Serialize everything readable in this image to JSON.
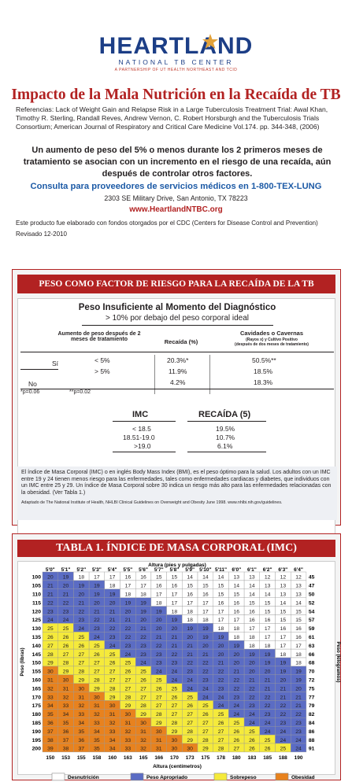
{
  "logo": {
    "name": "HEARTLAND",
    "line1": "NATIONAL TB CENTER",
    "line2": "A PARTNERSHIP OF UT HEALTH NORTHEAST AND TCID"
  },
  "title": "Impacto de la Mala Nutrición en la Recaída de TB",
  "references": "Referencias: Lack of Weight Gain and Relapse Risk in a Large Tuberculosis Treatment Trial: Awal Khan, Timothy R. Sterling, Randall Reves, Andrew Vernon, C. Robert Horsburgh and the Tuberculosis Trials Consortium; American Journal of Respiratory and Critical Care Medicine Vol.174. pp. 344-348, (2006)",
  "lead": "Un aumento de peso del 5% o menos durante los 2 primeros meses de tratamiento se asocian con un incremento en el riesgo de una recaída, aún después de controlar otros factores.",
  "consult": "Consulta para proveedores de servicios médicos en 1-800-TEX-LUNG",
  "address": "2303 SE Military Drive, San Antonio, TX 78223",
  "website": "www.HeartlandNTBC.org",
  "funding": "Este producto fue elaborado con fondos otorgados por el CDC (Centers for Disease Control and Prevention)",
  "revised": "Revisado 12-2010",
  "section1": {
    "banner": "PESO COMO FACTOR DE RIESGO PARA LA RECAÍDA DE LA TB",
    "subtitle": "Peso Insuficiente al Momento del Diagnóstico",
    "sub2": "> 10% por debajo del peso corporal ideal",
    "col1": "Aumento de peso después de 2 meses de tratamiento",
    "col2": "Recaída (%)",
    "col3": "Cavidades o Cavernas",
    "col3b": "(Rayos x) y Cultivo Positivo",
    "col3c": "(después de dos meses de tratamiento)",
    "row_si": "Sí",
    "row_no": "No",
    "cond1": "< 5%",
    "cond2": "> 5%",
    "rec": [
      "20.3%*",
      "11.9%",
      "4.2%"
    ],
    "cav": [
      "50.5%**",
      "18.5%",
      "18.3%"
    ],
    "p1": "*p=0.06",
    "p2": "**p=0.02",
    "bmi_h": "IMC",
    "rel_h": "RECAÍDA (5)",
    "bmi": [
      "< 18.5",
      "18.51-19.0",
      ">19.0"
    ],
    "rel": [
      "19.5%",
      "10.7%",
      "6.1%"
    ],
    "foot": "El índice de Masa Corporal (IMC) o en inglés Body Mass Index (BMI), es el peso óptimo para la salud. Los adultos con un IMC entre 19 y 24 tienen menos riesgo para las enfermedades, tales como enfermedades cardiacas y diabetes, que individuos con un IMC entre 25 y 29. Un índice de Masa Corporal sobre 30 indica un riesgo más alto para las enfermedades relacionadas con la obesidad. (Ver Tabla 1.)",
    "foot_src": "Adaptado de The National Institute of Health, NHLBI Clinical Guidelines on Overweight and Obesity June 1998. www.nhlbi.nih.gov/guidelines."
  },
  "section2": {
    "banner": "TABLA 1. ÍNDICE DE MASA CORPORAL (IMC)",
    "top_label": "Altura (pies y pulgadas)",
    "bottom_label": "Altura (centímetros)",
    "left_label": "Peso (libras)",
    "right_label": "Peso (kilogramos)",
    "heights_ft": [
      "5'0\"",
      "5'1\"",
      "5'2\"",
      "5'3\"",
      "5'4\"",
      "5'5\"",
      "5'6\"",
      "5'7\"",
      "5'8\"",
      "5'9\"",
      "5'10\"",
      "5'11\"",
      "6'0\"",
      "6'1\"",
      "6'2\"",
      "6'3\"",
      "6'4\""
    ],
    "heights_cm": [
      "150",
      "153",
      "155",
      "158",
      "160",
      "163",
      "165",
      "166",
      "170",
      "173",
      "175",
      "178",
      "180",
      "183",
      "185",
      "188",
      "190"
    ],
    "weights_lb": [
      "100",
      "105",
      "110",
      "115",
      "120",
      "125",
      "130",
      "135",
      "140",
      "145",
      "150",
      "155",
      "160",
      "165",
      "170",
      "175",
      "180",
      "185",
      "190",
      "195",
      "200"
    ],
    "weights_kg": [
      "45",
      "47",
      "50",
      "52",
      "54",
      "57",
      "59",
      "61",
      "63",
      "66",
      "68",
      "70",
      "72",
      "75",
      "77",
      "79",
      "82",
      "84",
      "86",
      "88",
      "91"
    ],
    "bmi": [
      [
        20,
        19,
        18,
        17,
        17,
        16,
        16,
        15,
        15,
        14,
        14,
        14,
        13,
        13,
        12,
        12,
        12
      ],
      [
        21,
        20,
        19,
        19,
        18,
        17,
        17,
        16,
        16,
        15,
        15,
        15,
        14,
        14,
        13,
        13,
        13
      ],
      [
        21,
        21,
        20,
        19,
        19,
        18,
        18,
        17,
        17,
        16,
        16,
        15,
        15,
        14,
        14,
        13,
        13
      ],
      [
        22,
        22,
        21,
        20,
        20,
        19,
        19,
        18,
        17,
        17,
        17,
        16,
        16,
        15,
        15,
        14,
        14
      ],
      [
        23,
        23,
        22,
        21,
        21,
        20,
        19,
        19,
        18,
        18,
        17,
        17,
        16,
        16,
        15,
        15,
        15
      ],
      [
        24,
        24,
        23,
        22,
        21,
        21,
        20,
        20,
        19,
        18,
        18,
        17,
        17,
        16,
        16,
        15,
        15
      ],
      [
        25,
        25,
        24,
        23,
        22,
        22,
        21,
        20,
        20,
        19,
        19,
        18,
        18,
        17,
        17,
        16,
        16
      ],
      [
        26,
        26,
        25,
        24,
        23,
        22,
        22,
        21,
        21,
        20,
        19,
        19,
        18,
        18,
        17,
        17,
        16
      ],
      [
        27,
        26,
        26,
        25,
        24,
        23,
        23,
        22,
        21,
        21,
        20,
        20,
        19,
        18,
        18,
        17,
        17
      ],
      [
        28,
        27,
        27,
        26,
        25,
        24,
        23,
        23,
        22,
        21,
        21,
        20,
        20,
        19,
        19,
        18,
        18
      ],
      [
        29,
        28,
        27,
        27,
        26,
        25,
        24,
        23,
        23,
        22,
        22,
        21,
        20,
        20,
        19,
        19,
        18
      ],
      [
        30,
        29,
        28,
        27,
        27,
        26,
        25,
        24,
        24,
        23,
        22,
        22,
        21,
        20,
        20,
        19,
        19
      ],
      [
        31,
        30,
        29,
        28,
        27,
        27,
        26,
        25,
        24,
        24,
        23,
        22,
        22,
        21,
        21,
        20,
        19
      ],
      [
        32,
        31,
        30,
        29,
        28,
        27,
        27,
        26,
        25,
        24,
        24,
        23,
        22,
        22,
        21,
        21,
        20
      ],
      [
        33,
        32,
        31,
        30,
        29,
        28,
        27,
        27,
        26,
        25,
        24,
        24,
        23,
        22,
        22,
        21,
        21
      ],
      [
        34,
        33,
        32,
        31,
        30,
        29,
        28,
        27,
        27,
        26,
        25,
        24,
        24,
        23,
        22,
        22,
        21
      ],
      [
        35,
        34,
        33,
        32,
        31,
        30,
        29,
        28,
        27,
        27,
        26,
        25,
        24,
        24,
        23,
        22,
        22
      ],
      [
        36,
        35,
        34,
        33,
        32,
        31,
        30,
        29,
        28,
        27,
        27,
        26,
        25,
        24,
        24,
        23,
        23
      ],
      [
        37,
        36,
        35,
        34,
        33,
        32,
        31,
        30,
        29,
        28,
        27,
        27,
        26,
        25,
        24,
        24,
        23
      ],
      [
        38,
        37,
        36,
        35,
        34,
        33,
        32,
        31,
        30,
        29,
        28,
        27,
        26,
        26,
        25,
        24,
        24
      ],
      [
        39,
        38,
        37,
        35,
        34,
        33,
        32,
        31,
        30,
        30,
        29,
        28,
        27,
        26,
        26,
        25,
        24
      ]
    ],
    "legend": [
      "Desnutrición",
      "Peso Apropriado",
      "Sobrepeso",
      "Obesidad"
    ],
    "colors": {
      "under": "#ffffff",
      "normal": "#5b6cc4",
      "over": "#f5ea3b",
      "obese": "#e8821e"
    }
  }
}
